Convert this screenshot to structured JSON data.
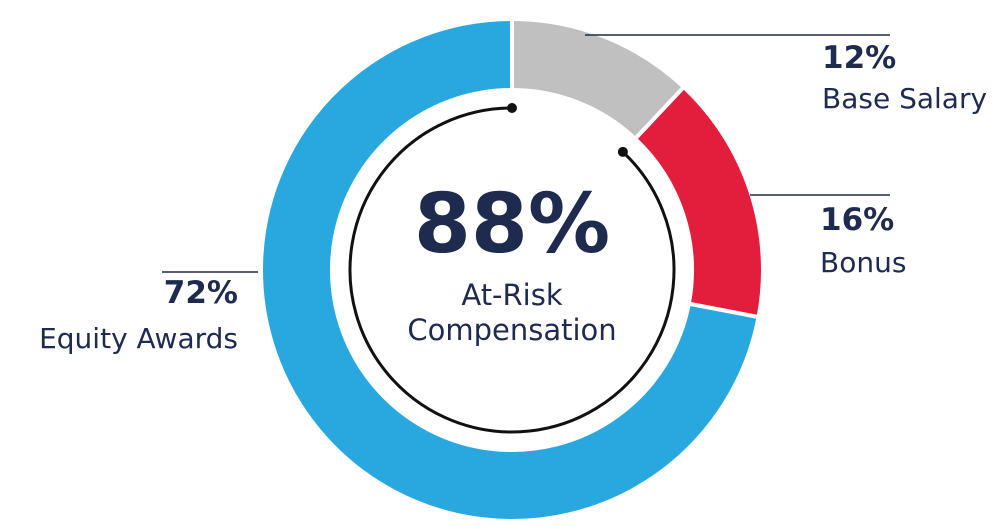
{
  "chart_data": {
    "type": "pie",
    "donut": true,
    "categories": [
      "Base Salary",
      "Bonus",
      "Equity Awards"
    ],
    "values": [
      12,
      16,
      72
    ],
    "value_labels": [
      "12%",
      "16%",
      "72%"
    ],
    "colors": [
      "#c0c0c0",
      "#e31d3c",
      "#29a8e0"
    ],
    "at_risk": {
      "value": 88,
      "label": "88%"
    },
    "center_text": [
      "At-Risk",
      "Compensation"
    ]
  }
}
